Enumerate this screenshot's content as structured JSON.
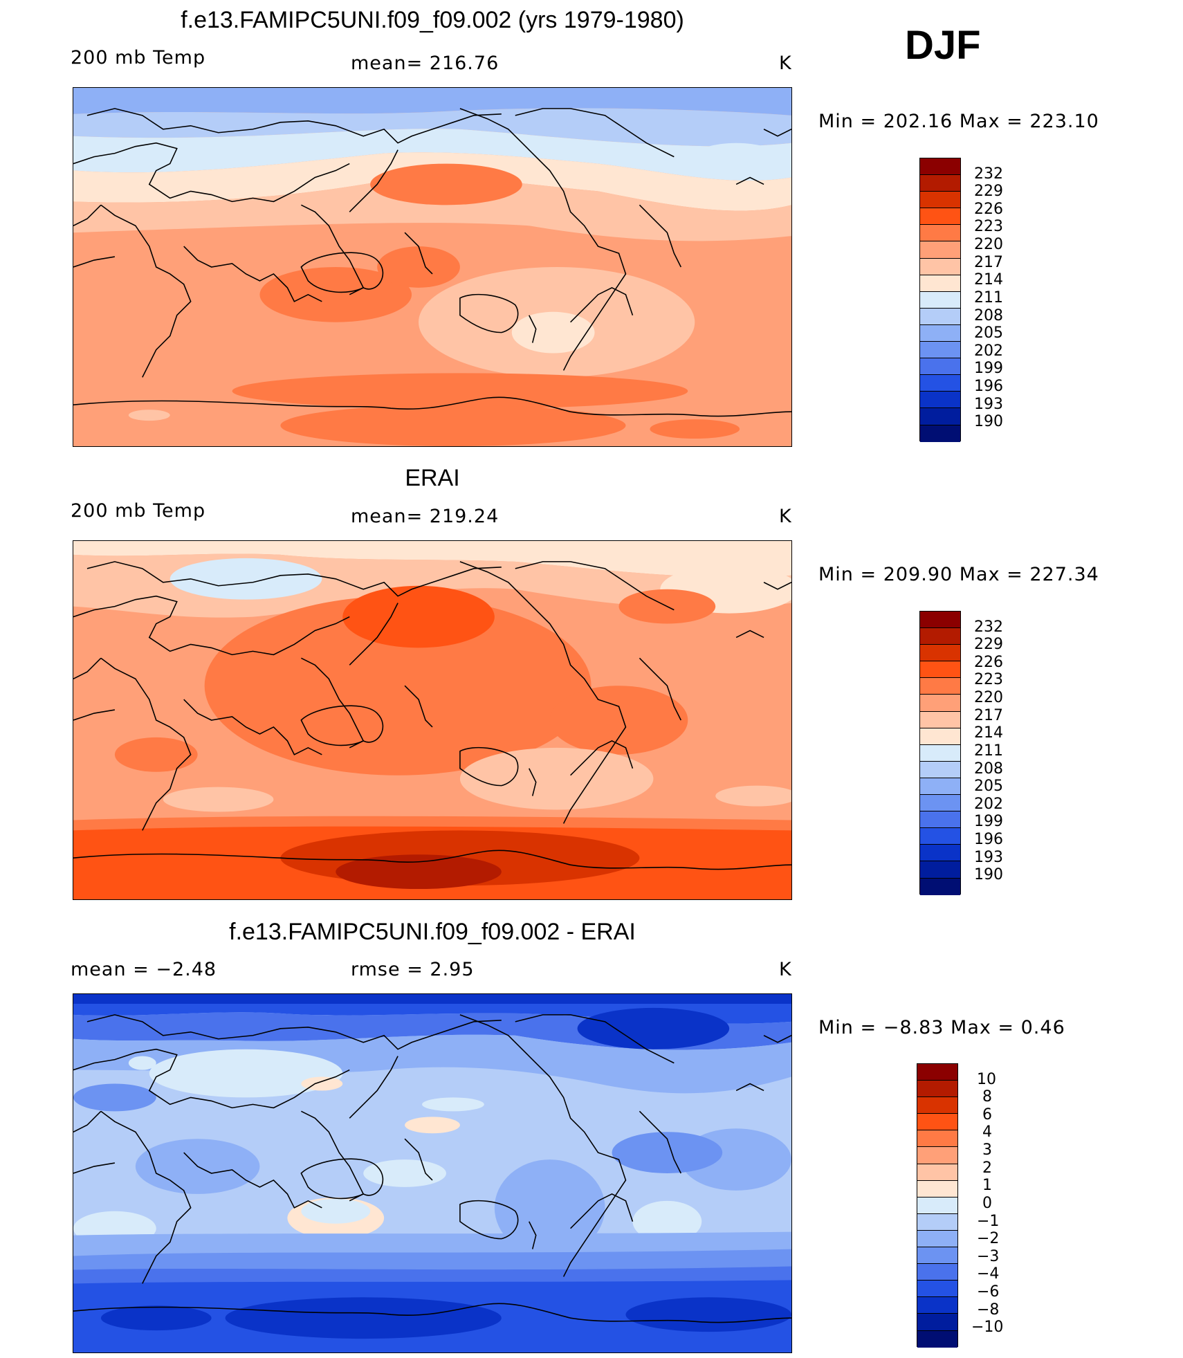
{
  "season": "DJF",
  "panels": [
    {
      "title": "f.e13.FAMIPC5UNI.f09_f09.002 (yrs 1979-1980)",
      "left_label": "200 mb Temp",
      "center_label": "mean=  216.76",
      "units": "K",
      "range_label": "Min  =  202.16  Max  =  223.10",
      "colorbar_labels": [
        "232",
        "229",
        "226",
        "223",
        "220",
        "217",
        "214",
        "211",
        "208",
        "205",
        "202",
        "199",
        "196",
        "193",
        "190"
      ],
      "colors": [
        "#8b0000",
        "#b31b00",
        "#d93300",
        "#ff5314",
        "#ff7a45",
        "#ffa078",
        "#ffc4a6",
        "#ffe6d2",
        "#d8ebfa",
        "#b4cdf8",
        "#8eb0f6",
        "#6c93f2",
        "#4a72ec",
        "#2452e4",
        "#0a33c8",
        "#001d9e",
        "#000e73"
      ]
    },
    {
      "title": "ERAI",
      "left_label": "200 mb Temp",
      "center_label": "mean=  219.24",
      "units": "K",
      "range_label": "Min  =  209.90  Max  =  227.34",
      "colorbar_labels": [
        "232",
        "229",
        "226",
        "223",
        "220",
        "217",
        "214",
        "211",
        "208",
        "205",
        "202",
        "199",
        "196",
        "193",
        "190"
      ],
      "colors": [
        "#8b0000",
        "#b31b00",
        "#d93300",
        "#ff5314",
        "#ff7a45",
        "#ffa078",
        "#ffc4a6",
        "#ffe6d2",
        "#d8ebfa",
        "#b4cdf8",
        "#8eb0f6",
        "#6c93f2",
        "#4a72ec",
        "#2452e4",
        "#0a33c8",
        "#001d9e",
        "#000e73"
      ]
    },
    {
      "title": "f.e13.FAMIPC5UNI.f09_f09.002 - ERAI",
      "left_label": "mean  =     −2.48",
      "center_label": "rmse  =      2.95",
      "units": "K",
      "range_label": "Min  =    −8.83  Max  =      0.46",
      "colorbar_labels": [
        "10",
        "8",
        "6",
        "4",
        "3",
        "2",
        "1",
        "0",
        "−1",
        "−2",
        "−3",
        "−4",
        "−6",
        "−8",
        "−10"
      ],
      "colors": [
        "#8b0000",
        "#b31b00",
        "#d93300",
        "#ff5314",
        "#ff7a45",
        "#ffa078",
        "#ffc4a6",
        "#ffe6d2",
        "#d8ebfa",
        "#b4cdf8",
        "#8eb0f6",
        "#6c93f2",
        "#4a72ec",
        "#2452e4",
        "#0a33c8",
        "#001d9e",
        "#000e73"
      ]
    }
  ]
}
